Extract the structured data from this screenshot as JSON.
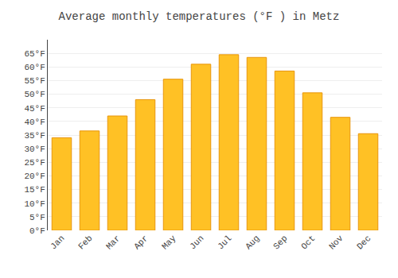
{
  "chart_data": {
    "type": "bar",
    "title": "Average monthly temperatures (°F ) in Metz",
    "categories": [
      "Jan",
      "Feb",
      "Mar",
      "Apr",
      "May",
      "Jun",
      "Jul",
      "Aug",
      "Sep",
      "Oct",
      "Nov",
      "Dec"
    ],
    "values": [
      34,
      36.5,
      42,
      48,
      55.5,
      61,
      64.5,
      63.5,
      58.5,
      50.5,
      41.5,
      35.5
    ],
    "color": "#FFC125",
    "ylim": [
      0,
      70
    ],
    "yticks": [
      {
        "value": 0,
        "label": "0°F"
      },
      {
        "value": 5,
        "label": "5°F"
      },
      {
        "value": 10,
        "label": "10°F"
      },
      {
        "value": 15,
        "label": "15°F"
      },
      {
        "value": 20,
        "label": "20°F"
      },
      {
        "value": 25,
        "label": "25°F"
      },
      {
        "value": 30,
        "label": "30°F"
      },
      {
        "value": 35,
        "label": "35°F"
      },
      {
        "value": 40,
        "label": "40°F"
      },
      {
        "value": 45,
        "label": "45°F"
      },
      {
        "value": 50,
        "label": "50°F"
      },
      {
        "value": 55,
        "label": "55°F"
      },
      {
        "value": 60,
        "label": "60°F"
      },
      {
        "value": 65,
        "label": "65°F"
      }
    ],
    "grid": true
  }
}
